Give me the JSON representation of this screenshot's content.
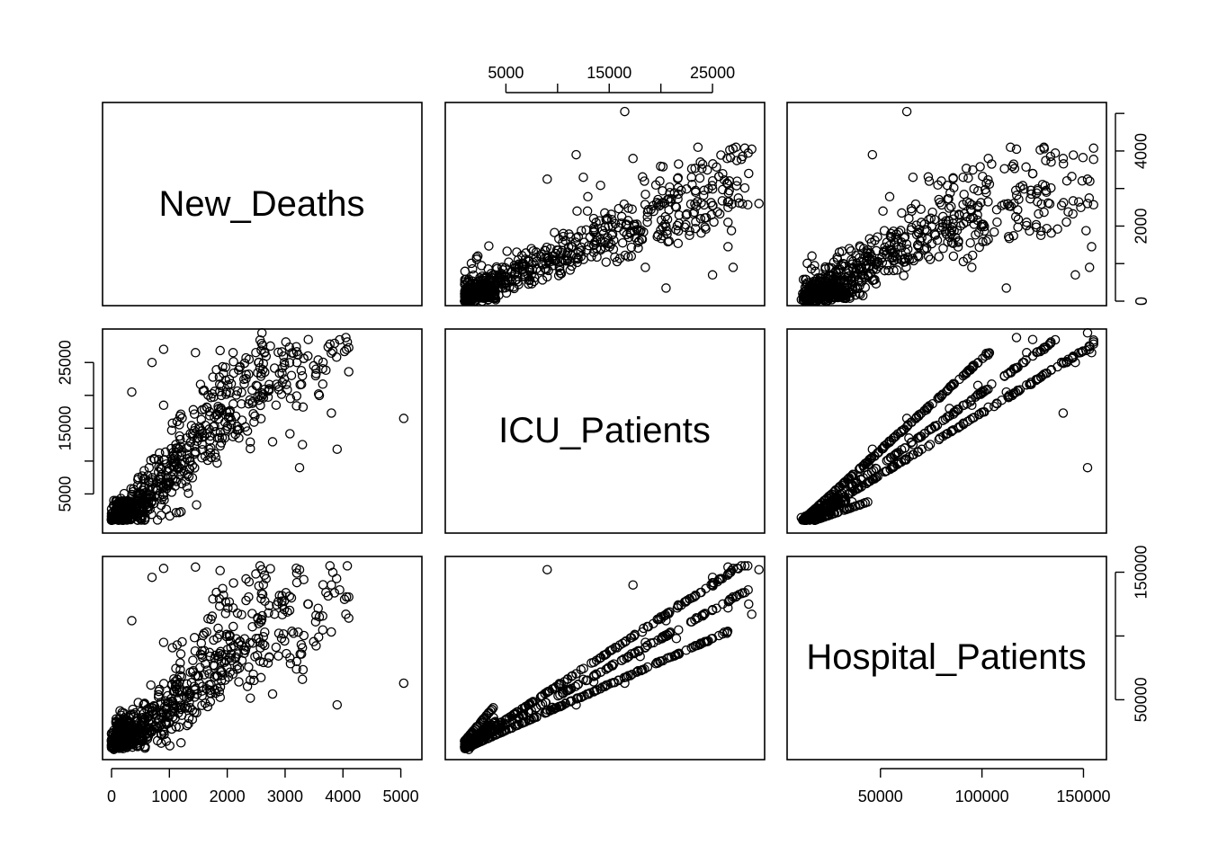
{
  "chart_data": {
    "type": "scatter",
    "kind": "scatterplot-matrix",
    "variables": [
      "New_Deaths",
      "ICU_Patients",
      "Hospital_Patients"
    ],
    "ranges": {
      "New_Deaths": [
        0,
        5100
      ],
      "ICU_Patients": [
        0,
        29000
      ],
      "Hospital_Patients": [
        8000,
        156000
      ]
    },
    "ticks": {
      "New_Deaths": [
        0,
        1000,
        2000,
        3000,
        4000,
        5000
      ],
      "ICU_Patients": [
        5000,
        10000,
        15000,
        20000,
        25000
      ],
      "Hospital_Patients": [
        0,
        50000,
        100000,
        150000
      ]
    },
    "tick_labels": {
      "New_Deaths_bottom": [
        "0",
        "1000",
        "2000",
        "3000",
        "4000",
        "5000"
      ],
      "ICU_Patients_top": [
        "5000",
        "15000",
        "25000"
      ],
      "ICU_Patients_left": [
        "5000",
        "15000",
        "25000"
      ],
      "Hospital_Patients_bottom": [
        "50000",
        "100000",
        "150000"
      ],
      "New_Deaths_right": [
        "0",
        "2000",
        "4000"
      ],
      "Hospital_Patients_right": [
        "50000",
        "150000"
      ]
    },
    "grid": false,
    "point_style": "open-circle",
    "observations_approx": 700,
    "points": [
      {
        "New_Deaths": 5050,
        "ICU_Patients": 16500,
        "Hospital_Patients": 63000
      },
      {
        "New_Deaths": 4050,
        "ICU_Patients": 28800,
        "Hospital_Patients": 117000
      },
      {
        "New_Deaths": 3900,
        "ICU_Patients": 11800,
        "Hospital_Patients": 46000
      },
      {
        "New_Deaths": 3800,
        "ICU_Patients": 17300,
        "Hospital_Patients": 140000
      },
      {
        "New_Deaths": 3400,
        "ICU_Patients": 28500,
        "Hospital_Patients": 125000
      },
      {
        "New_Deaths": 3300,
        "ICU_Patients": 12500,
        "Hospital_Patients": 66000
      },
      {
        "New_Deaths": 3250,
        "ICU_Patients": 9000,
        "Hospital_Patients": 152000
      },
      {
        "New_Deaths": 2600,
        "ICU_Patients": 29500,
        "Hospital_Patients": 152000
      },
      {
        "New_Deaths": 2100,
        "ICU_Patients": 26500,
        "Hospital_Patients": 122000
      },
      {
        "New_Deaths": 1450,
        "ICU_Patients": 26500,
        "Hospital_Patients": 154000
      },
      {
        "New_Deaths": 900,
        "ICU_Patients": 27000,
        "Hospital_Patients": 153000
      },
      {
        "New_Deaths": 700,
        "ICU_Patients": 25000,
        "Hospital_Patients": 146000
      },
      {
        "New_Deaths": 2500,
        "ICU_Patients": 21500,
        "Hospital_Patients": 98000
      },
      {
        "New_Deaths": 1850,
        "ICU_Patients": 18000,
        "Hospital_Patients": 84000
      },
      {
        "New_Deaths": 2200,
        "ICU_Patients": 13500,
        "Hospital_Patients": 64000
      },
      {
        "New_Deaths": 1200,
        "ICU_Patients": 9500,
        "Hospital_Patients": 44000
      },
      {
        "New_Deaths": 650,
        "ICU_Patients": 9000,
        "Hospital_Patients": 42000
      },
      {
        "New_Deaths": 900,
        "ICU_Patients": 18500,
        "Hospital_Patients": 95000
      },
      {
        "New_Deaths": 350,
        "ICU_Patients": 20500,
        "Hospital_Patients": 112000
      },
      {
        "New_Deaths": 550,
        "ICU_Patients": 2800,
        "Hospital_Patients": 32000
      },
      {
        "New_Deaths": 300,
        "ICU_Patients": 3800,
        "Hospital_Patients": 36000
      },
      {
        "New_Deaths": 150,
        "ICU_Patients": 2500,
        "Hospital_Patients": 22000
      },
      {
        "New_Deaths": 80,
        "ICU_Patients": 1600,
        "Hospital_Patients": 13000
      },
      {
        "New_Deaths": 40,
        "ICU_Patients": 1400,
        "Hospital_Patients": 11000
      }
    ]
  }
}
